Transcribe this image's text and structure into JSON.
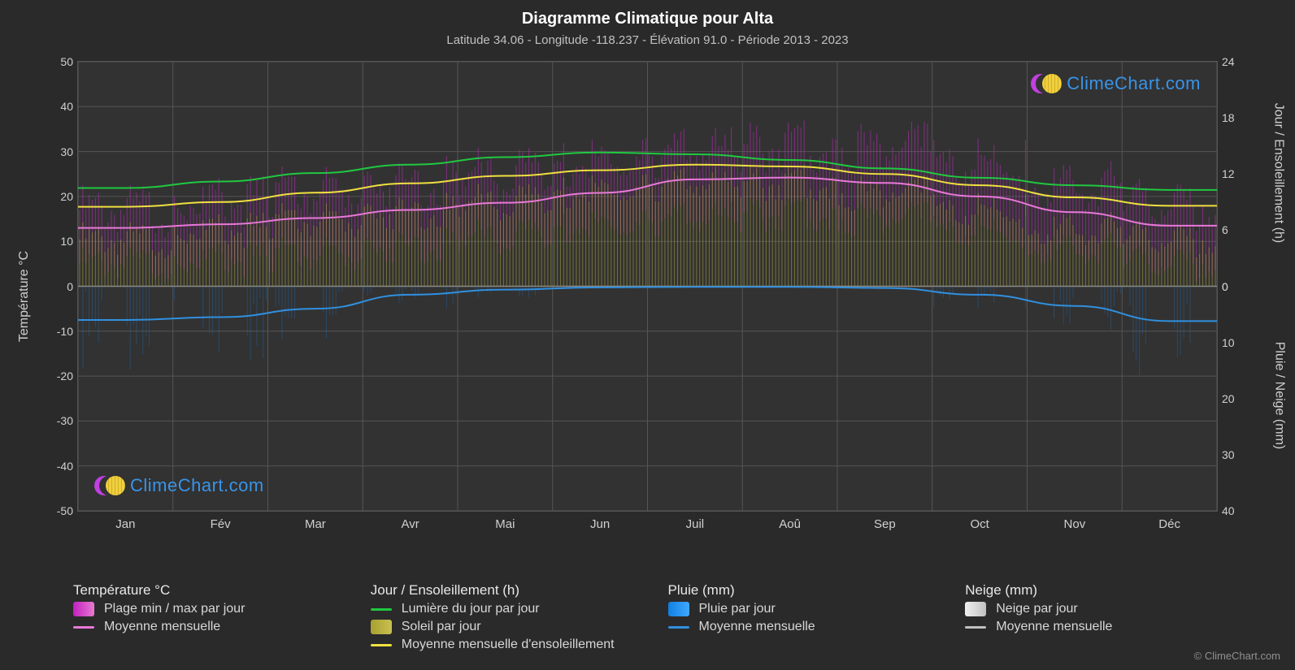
{
  "title": "Diagramme Climatique pour Alta",
  "subtitle": "Latitude 34.06 - Longitude -118.237 - Élévation 91.0 - Période 2013 - 2023",
  "copyright": "© ClimeChart.com",
  "watermark_text": "ClimeChart.com",
  "chart": {
    "background_color": "#323232",
    "grid_color": "#555555",
    "axis_text_color": "#d0d0d0",
    "title_color": "#ffffff",
    "title_fontsize": 20,
    "subtitle_fontsize": 15,
    "tick_fontsize": 14,
    "axis_label_fontsize": 16,
    "months": [
      "Jan",
      "Fév",
      "Mar",
      "Avr",
      "Mai",
      "Jun",
      "Juil",
      "Aoû",
      "Sep",
      "Oct",
      "Nov",
      "Déc"
    ],
    "left_axis": {
      "label": "Température °C",
      "min": -50,
      "max": 50,
      "step": 10,
      "ticks": [
        -50,
        -40,
        -30,
        -20,
        -10,
        0,
        10,
        20,
        30,
        40,
        50
      ]
    },
    "right_top_axis": {
      "label": "Jour / Ensoleillement (h)",
      "min": 0,
      "max": 24,
      "step": 6,
      "ticks": [
        0,
        6,
        12,
        18,
        24
      ]
    },
    "right_bottom_axis": {
      "label": "Pluie / Neige (mm)",
      "min": 0,
      "max": 40,
      "step": 10,
      "ticks": [
        0,
        10,
        20,
        30,
        40
      ]
    },
    "series": {
      "temp_range_fill_color": "#c82ac880",
      "sun_fill_color": "#b0a83880",
      "rain_fill_color": "#2070c060",
      "daylight_line": {
        "color": "#20c840",
        "width": 2,
        "values_h": [
          10.5,
          11.2,
          12.1,
          13.0,
          13.8,
          14.3,
          14.1,
          13.5,
          12.6,
          11.6,
          10.8,
          10.3
        ]
      },
      "sunshine_mean_line": {
        "color": "#f0e040",
        "width": 2,
        "values_h": [
          8.5,
          9.0,
          10.0,
          11.0,
          11.8,
          12.4,
          13.0,
          12.8,
          12.0,
          10.8,
          9.5,
          8.6
        ]
      },
      "temp_mean_line": {
        "color": "#e878d8",
        "width": 2,
        "values_c": [
          13.0,
          13.8,
          15.2,
          17.0,
          18.6,
          20.8,
          23.8,
          24.2,
          23.0,
          20.0,
          16.5,
          13.5
        ]
      },
      "rain_mean_line": {
        "color": "#3090e0",
        "width": 2,
        "values_mm": [
          6.0,
          5.5,
          4.0,
          1.5,
          0.6,
          0.2,
          0.1,
          0.1,
          0.3,
          1.5,
          3.5,
          6.2
        ]
      },
      "temp_max_c": [
        20,
        22,
        24,
        26,
        28,
        30,
        33,
        34,
        34,
        30,
        25,
        21
      ],
      "temp_min_c": [
        7,
        8,
        9,
        11,
        13,
        15,
        17,
        18,
        17,
        14,
        10,
        7
      ],
      "sun_daily_h": [
        6,
        7,
        8,
        9,
        10,
        11,
        12,
        12,
        11,
        9,
        7,
        6
      ],
      "rain_daily_mm": [
        8,
        7,
        5,
        2,
        1,
        0,
        0,
        0,
        0,
        2,
        4,
        8
      ]
    }
  },
  "legend": {
    "groups": [
      {
        "title": "Température °C",
        "items": [
          {
            "kind": "swatch",
            "class": "grad-mag",
            "label": "Plage min / max par jour"
          },
          {
            "kind": "line",
            "color": "#e878d8",
            "label": "Moyenne mensuelle"
          }
        ]
      },
      {
        "title": "Jour / Ensoleillement (h)",
        "items": [
          {
            "kind": "line",
            "color": "#20c840",
            "label": "Lumière du jour par jour"
          },
          {
            "kind": "swatch",
            "class": "grad-olive",
            "label": "Soleil par jour"
          },
          {
            "kind": "line",
            "color": "#f0e040",
            "label": "Moyenne mensuelle d'ensoleillement"
          }
        ]
      },
      {
        "title": "Pluie (mm)",
        "items": [
          {
            "kind": "swatch",
            "class": "grad-blue",
            "label": "Pluie par jour"
          },
          {
            "kind": "line",
            "color": "#3090e0",
            "label": "Moyenne mensuelle"
          }
        ]
      },
      {
        "title": "Neige (mm)",
        "items": [
          {
            "kind": "swatch",
            "class": "grad-white",
            "label": "Neige par jour"
          },
          {
            "kind": "line",
            "color": "#c0c0c0",
            "label": "Moyenne mensuelle"
          }
        ]
      }
    ]
  }
}
